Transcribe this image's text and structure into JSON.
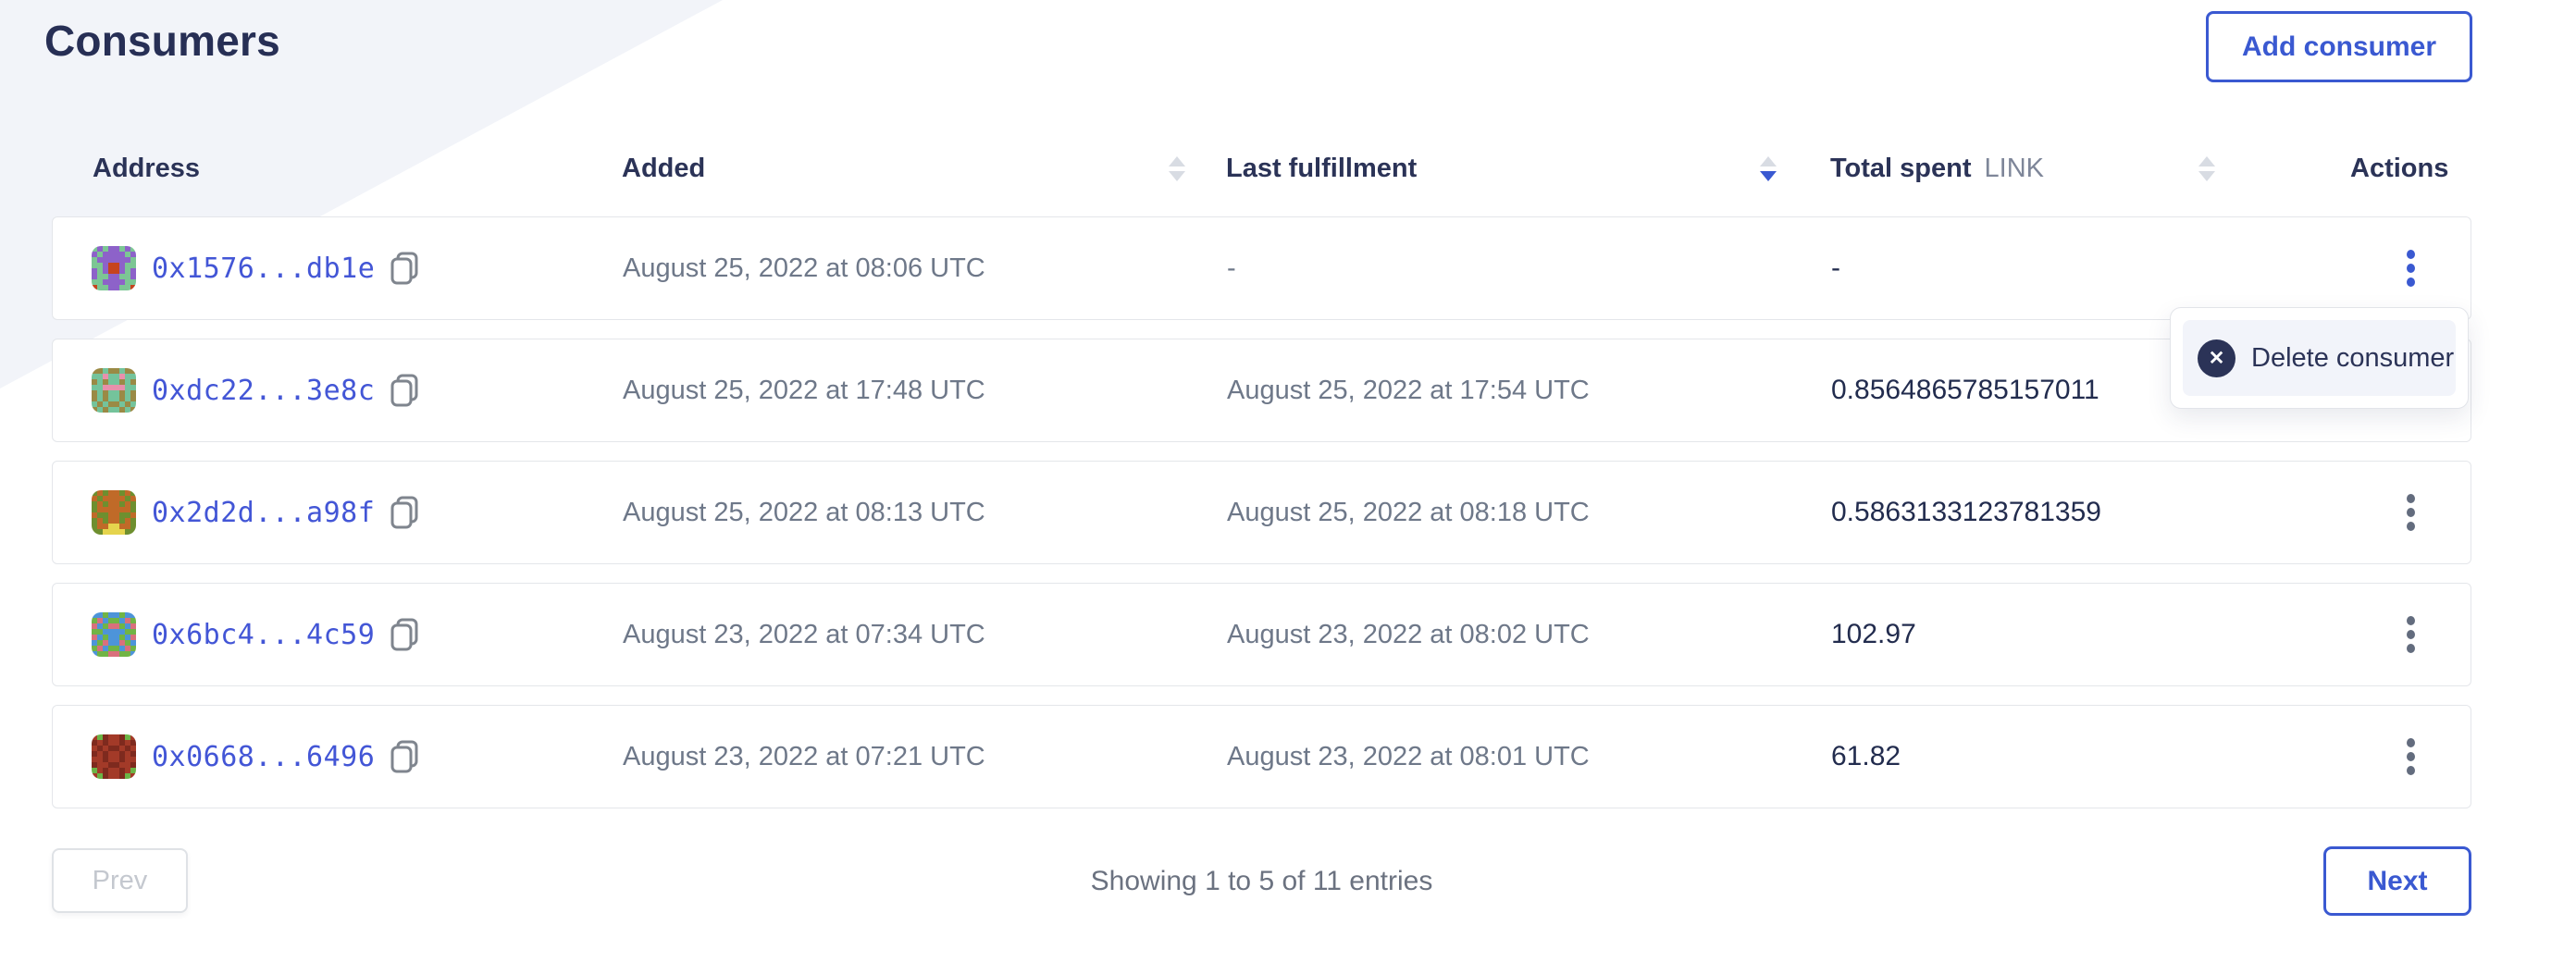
{
  "page": {
    "title": "Consumers"
  },
  "header_button": {
    "label": "Add consumer"
  },
  "table": {
    "columns": [
      {
        "label": "Address",
        "sort": "none"
      },
      {
        "label": "Added",
        "sort": "inactive"
      },
      {
        "label": "Last fulfillment",
        "sort": "desc"
      },
      {
        "label": "Total spent",
        "unit": "LINK",
        "sort": "inactive"
      },
      {
        "label": "Actions",
        "sort": "none"
      }
    ],
    "rows": [
      {
        "address": "0x1576...db1e",
        "added": "August 25, 2022 at 08:06 UTC",
        "last_fulfillment": "-",
        "total_spent": "-",
        "kebab_active": true,
        "identicon": {
          "palette": {
            "B": "#7cc694",
            "P": "#8d62c9",
            "A": "#c6441e"
          },
          "grid": [
            "BPBPPBPB",
            "PBPPPPBP",
            "BPPPPPPB",
            "BBPAAPBB",
            "PBPAAPBP",
            "PBBPPBBP",
            "BBPPPPBB",
            "ABBPPBBA"
          ]
        }
      },
      {
        "address": "0xdc22...3e8c",
        "added": "August 25, 2022 at 17:48 UTC",
        "last_fulfillment": "August 25, 2022 at 17:54 UTC",
        "total_spent": "0.8564865785157011",
        "kebab_active": false,
        "identicon": {
          "palette": {
            "B": "#74c39b",
            "P": "#9a8a45",
            "A": "#e890ab"
          },
          "grid": [
            "PPBPPBPP",
            "BBABBABB",
            "PBPBBPBP",
            "BBAAAABB",
            "PBPBBPBP",
            "PBPBBPBP",
            "BPBPPBPB",
            "PBPBBPBP"
          ]
        }
      },
      {
        "address": "0x2d2d...a98f",
        "added": "August 25, 2022 at 08:13 UTC",
        "last_fulfillment": "August 25, 2022 at 08:18 UTC",
        "total_spent": "0.5863133123781359",
        "kebab_active": false,
        "identicon": {
          "palette": {
            "B": "#6e8f2f",
            "P": "#c06a28",
            "A": "#e5d44d"
          },
          "grid": [
            "BPBPPBPB",
            "PBPPPPBP",
            "BPBPPBPB",
            "BPPPPPPB",
            "PBBPPBBP",
            "BPBPPBPB",
            "BPPAAPPB",
            "BBAAAABB"
          ]
        }
      },
      {
        "address": "0x6bc4...4c59",
        "added": "August 23, 2022 at 07:34 UTC",
        "last_fulfillment": "August 23, 2022 at 08:02 UTC",
        "total_spent": "102.97",
        "kebab_active": false,
        "identicon": {
          "palette": {
            "B": "#4d94d9",
            "P": "#71b445",
            "A": "#d9707c"
          },
          "grid": [
            "BBPBBPBB",
            "PABPPBAP",
            "ABPAAPBA",
            "PPBBBBPP",
            "ABPBBPBA",
            "BPABBAPB",
            "PABPPBAP",
            "BPPAAPPB"
          ]
        }
      },
      {
        "address": "0x0668...6496",
        "added": "August 23, 2022 at 07:21 UTC",
        "last_fulfillment": "August 23, 2022 at 08:01 UTC",
        "total_spent": "61.82",
        "kebab_active": false,
        "identicon": {
          "palette": {
            "B": "#a33a28",
            "P": "#7e2a1e",
            "A": "#6cb446"
          },
          "grid": [
            "BAPBBPAB",
            "PBPBBPBP",
            "BPBPPBPB",
            "PBPBBPBP",
            "BBPBBPBB",
            "PBBPPBBP",
            "ABPBBPBA",
            "BAPBBPAB"
          ]
        }
      }
    ]
  },
  "menu": {
    "items": [
      {
        "label": "Delete consumer",
        "icon": "x-circle",
        "icon_glyph": "✕"
      }
    ]
  },
  "pagination": {
    "prev_label": "Prev",
    "next_label": "Next",
    "summary": "Showing 1 to 5 of 11 entries"
  },
  "colors": {
    "accent_blue": "#3a59d1",
    "navy_text": "#2b3357",
    "link_blue": "#4356d6",
    "muted_text": "#6e7889",
    "card_border": "#e4e6ea",
    "background_accent": "#f2f4f9",
    "menu_item_bg": "#f2f4fa"
  }
}
